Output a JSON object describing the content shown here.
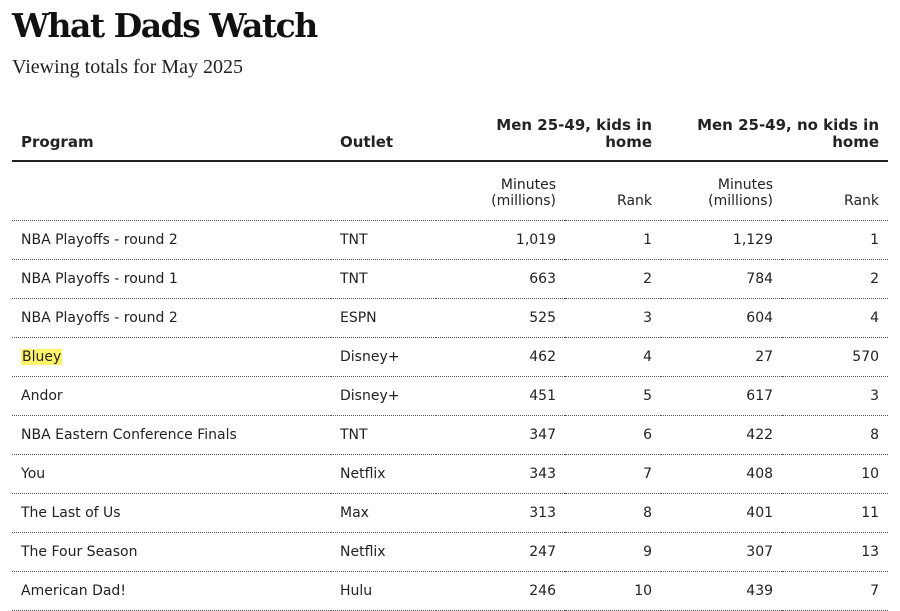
{
  "header": {
    "title": "What Dads Watch",
    "subtitle": "Viewing totals for May 2025"
  },
  "chart_data": {
    "type": "table",
    "title": "What Dads Watch",
    "subtitle": "Viewing totals for May 2025",
    "columns": {
      "program": "Program",
      "outlet": "Outlet",
      "group_kids": "Men 25-49, kids in home",
      "group_nokids": "Men 25-49, no kids in home",
      "minutes": "Minutes (millions)",
      "rank": "Rank"
    },
    "rows": [
      {
        "program": "NBA Playoffs - round 2",
        "outlet": "TNT",
        "kids_minutes": "1,019",
        "kids_rank": "1",
        "nokids_minutes": "1,129",
        "nokids_rank": "1"
      },
      {
        "program": "NBA Playoffs - round 1",
        "outlet": "TNT",
        "kids_minutes": "663",
        "kids_rank": "2",
        "nokids_minutes": "784",
        "nokids_rank": "2"
      },
      {
        "program": "NBA Playoffs - round 2",
        "outlet": "ESPN",
        "kids_minutes": "525",
        "kids_rank": "3",
        "nokids_minutes": "604",
        "nokids_rank": "4"
      },
      {
        "program": "Bluey",
        "outlet": "Disney+",
        "kids_minutes": "462",
        "kids_rank": "4",
        "nokids_minutes": "27",
        "nokids_rank": "570",
        "highlight": true
      },
      {
        "program": "Andor",
        "outlet": "Disney+",
        "kids_minutes": "451",
        "kids_rank": "5",
        "nokids_minutes": "617",
        "nokids_rank": "3"
      },
      {
        "program": "NBA Eastern Conference Finals",
        "outlet": "TNT",
        "kids_minutes": "347",
        "kids_rank": "6",
        "nokids_minutes": "422",
        "nokids_rank": "8"
      },
      {
        "program": "You",
        "outlet": "Netflix",
        "kids_minutes": "343",
        "kids_rank": "7",
        "nokids_minutes": "408",
        "nokids_rank": "10"
      },
      {
        "program": "The Last of Us",
        "outlet": "Max",
        "kids_minutes": "313",
        "kids_rank": "8",
        "nokids_minutes": "401",
        "nokids_rank": "11"
      },
      {
        "program": "The Four Season",
        "outlet": "Netflix",
        "kids_minutes": "247",
        "kids_rank": "9",
        "nokids_minutes": "307",
        "nokids_rank": "13"
      },
      {
        "program": "American Dad!",
        "outlet": "Hulu",
        "kids_minutes": "246",
        "kids_rank": "10",
        "nokids_minutes": "439",
        "nokids_rank": "7"
      }
    ],
    "highlight_color": "#fff36b"
  }
}
